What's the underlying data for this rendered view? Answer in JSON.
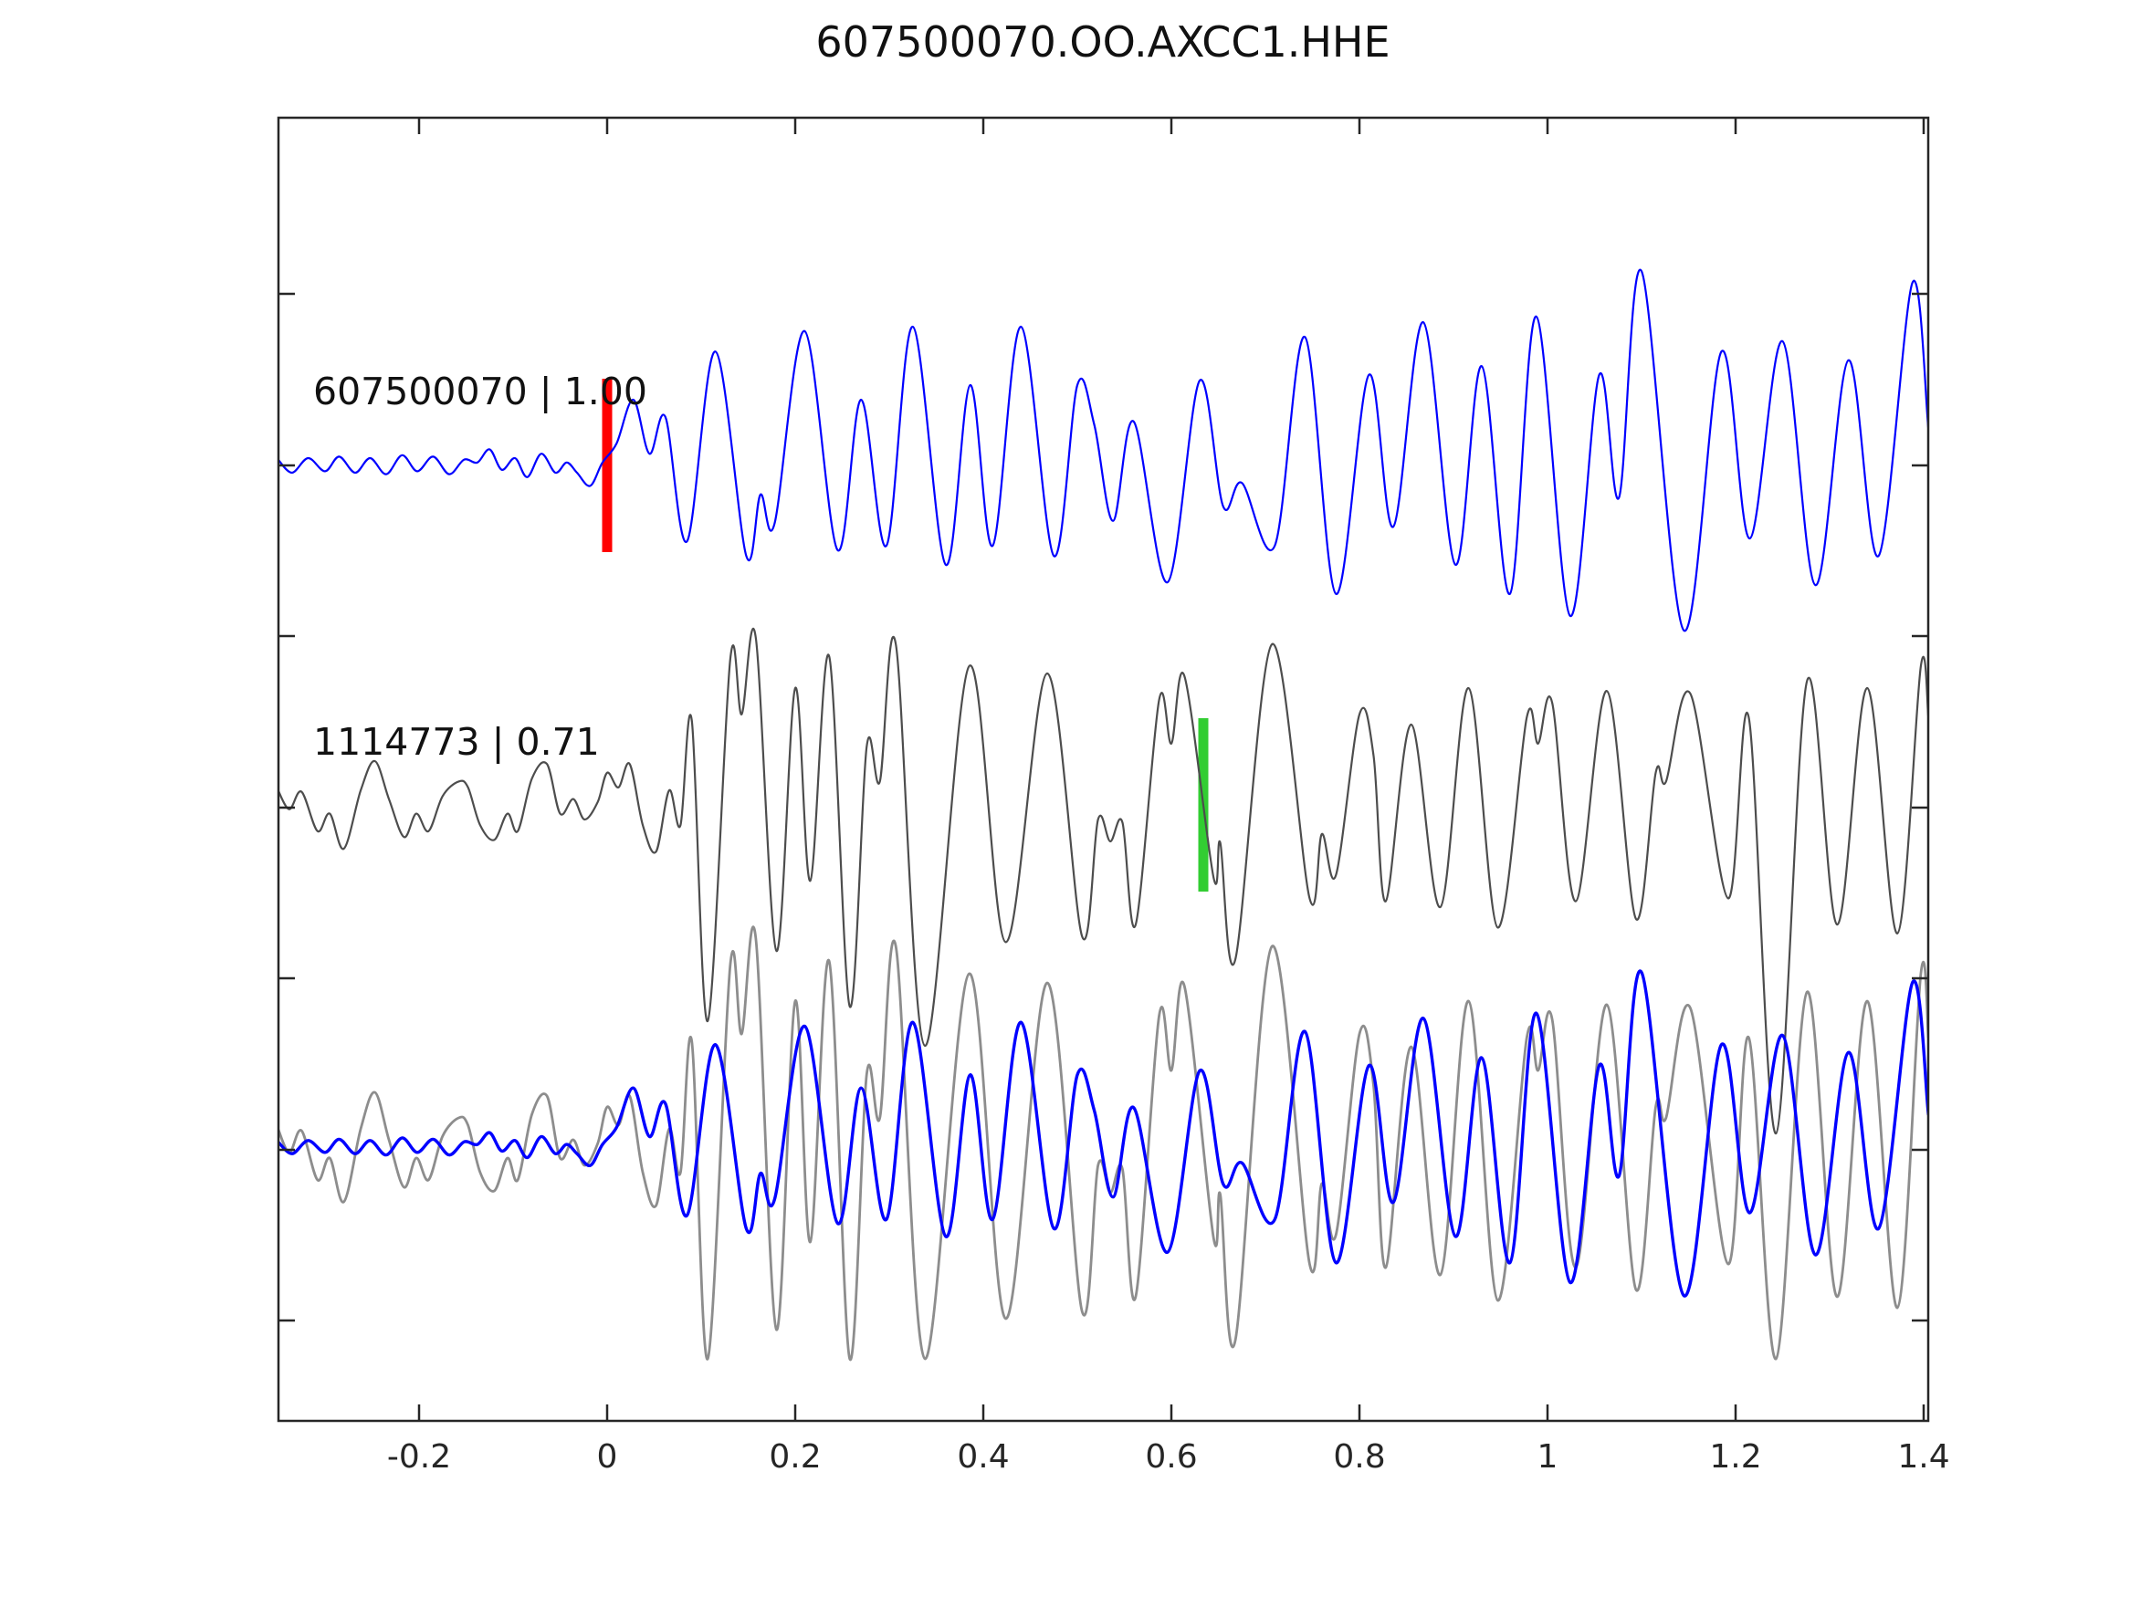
{
  "figure": {
    "title": "607500070.OO.AXCC1.HHE"
  },
  "axes": {
    "x_range": [
      -0.35,
      1.405
    ],
    "frame_color": "#262626",
    "x_ticks": [
      {
        "value": -0.2,
        "label": "-0.2"
      },
      {
        "value": 0.0,
        "label": "0"
      },
      {
        "value": 0.2,
        "label": "0.2"
      },
      {
        "value": 0.4,
        "label": "0.4"
      },
      {
        "value": 0.6,
        "label": "0.6"
      },
      {
        "value": 0.8,
        "label": "0.8"
      },
      {
        "value": 1.0,
        "label": "1"
      },
      {
        "value": 1.2,
        "label": "1.2"
      },
      {
        "value": 1.4,
        "label": "1.4"
      }
    ]
  },
  "chart_data": {
    "type": "line",
    "title": "607500070.OO.AXCC1.HHE",
    "xlabel": "",
    "ylabel": "",
    "x_units": "seconds relative to pick",
    "legend_position": "none",
    "grid": false,
    "traces": [
      {
        "id": "template",
        "label": "607500070 | 1.00",
        "event_id": "607500070",
        "correlation": 1.0,
        "color": "#0000ff",
        "line_width": 2.2,
        "row": 0,
        "pick": {
          "time": 0.0,
          "color": "#ff0000"
        },
        "points": [
          [
            -0.35,
            0.04
          ],
          [
            -0.335,
            -0.05
          ],
          [
            -0.318,
            0.05
          ],
          [
            -0.3,
            -0.04
          ],
          [
            -0.285,
            0.06
          ],
          [
            -0.268,
            -0.05
          ],
          [
            -0.252,
            0.05
          ],
          [
            -0.235,
            -0.06
          ],
          [
            -0.218,
            0.07
          ],
          [
            -0.202,
            -0.04
          ],
          [
            -0.185,
            0.06
          ],
          [
            -0.168,
            -0.06
          ],
          [
            -0.152,
            0.04
          ],
          [
            -0.138,
            0.02
          ],
          [
            -0.125,
            0.11
          ],
          [
            -0.112,
            -0.03
          ],
          [
            -0.098,
            0.05
          ],
          [
            -0.085,
            -0.08
          ],
          [
            -0.07,
            0.08
          ],
          [
            -0.055,
            -0.05
          ],
          [
            -0.043,
            0.02
          ],
          [
            -0.032,
            -0.05
          ],
          [
            -0.018,
            -0.14
          ],
          [
            -0.005,
            0.02
          ],
          [
            0.01,
            0.15
          ],
          [
            0.028,
            0.45
          ],
          [
            0.045,
            0.08
          ],
          [
            0.062,
            0.33
          ],
          [
            0.085,
            -0.52
          ],
          [
            0.115,
            0.78
          ],
          [
            0.148,
            -0.62
          ],
          [
            0.163,
            -0.2
          ],
          [
            0.178,
            -0.4
          ],
          [
            0.21,
            0.92
          ],
          [
            0.245,
            -0.58
          ],
          [
            0.27,
            0.45
          ],
          [
            0.297,
            -0.55
          ],
          [
            0.325,
            0.95
          ],
          [
            0.36,
            -0.68
          ],
          [
            0.386,
            0.55
          ],
          [
            0.41,
            -0.55
          ],
          [
            0.44,
            0.95
          ],
          [
            0.475,
            -0.62
          ],
          [
            0.5,
            0.55
          ],
          [
            0.518,
            0.28
          ],
          [
            0.538,
            -0.38
          ],
          [
            0.56,
            0.3
          ],
          [
            0.596,
            -0.8
          ],
          [
            0.63,
            0.58
          ],
          [
            0.655,
            -0.28
          ],
          [
            0.675,
            -0.12
          ],
          [
            0.71,
            -0.55
          ],
          [
            0.742,
            0.88
          ],
          [
            0.775,
            -0.88
          ],
          [
            0.81,
            0.62
          ],
          [
            0.836,
            -0.42
          ],
          [
            0.868,
            0.98
          ],
          [
            0.902,
            -0.68
          ],
          [
            0.93,
            0.68
          ],
          [
            0.96,
            -0.88
          ],
          [
            0.988,
            1.02
          ],
          [
            1.024,
            -1.03
          ],
          [
            1.055,
            0.62
          ],
          [
            1.076,
            -0.22
          ],
          [
            1.1,
            1.33
          ],
          [
            1.145,
            -1.13
          ],
          [
            1.185,
            0.78
          ],
          [
            1.215,
            -0.5
          ],
          [
            1.25,
            0.85
          ],
          [
            1.285,
            -0.82
          ],
          [
            1.32,
            0.72
          ],
          [
            1.352,
            -0.62
          ],
          [
            1.388,
            1.25
          ],
          [
            1.405,
            0.25
          ]
        ]
      },
      {
        "id": "detection",
        "label": "1114773 | 0.71",
        "event_id": "1114773",
        "correlation": 0.71,
        "color": "#4d4d4d",
        "line_width": 2.2,
        "row": 1,
        "pick": {
          "time": 0.634,
          "color": "#32cd32"
        },
        "points": [
          [
            -0.35,
            0.1
          ],
          [
            -0.338,
            -0.03
          ],
          [
            -0.325,
            0.09
          ],
          [
            -0.308,
            -0.18
          ],
          [
            -0.295,
            -0.06
          ],
          [
            -0.28,
            -0.3
          ],
          [
            -0.262,
            0.1
          ],
          [
            -0.247,
            0.3
          ],
          [
            -0.232,
            0.04
          ],
          [
            -0.216,
            -0.22
          ],
          [
            -0.203,
            -0.06
          ],
          [
            -0.19,
            -0.18
          ],
          [
            -0.175,
            0.06
          ],
          [
            -0.158,
            0.16
          ],
          [
            -0.148,
            0.12
          ],
          [
            -0.135,
            -0.14
          ],
          [
            -0.12,
            -0.24
          ],
          [
            -0.106,
            -0.06
          ],
          [
            -0.095,
            -0.18
          ],
          [
            -0.08,
            0.18
          ],
          [
            -0.064,
            0.28
          ],
          [
            -0.05,
            -0.06
          ],
          [
            -0.036,
            0.04
          ],
          [
            -0.024,
            -0.1
          ],
          [
            -0.01,
            0.02
          ],
          [
            0.0,
            0.22
          ],
          [
            0.012,
            0.12
          ],
          [
            0.024,
            0.28
          ],
          [
            0.038,
            -0.14
          ],
          [
            0.052,
            -0.32
          ],
          [
            0.066,
            0.1
          ],
          [
            0.078,
            -0.14
          ],
          [
            0.09,
            0.58
          ],
          [
            0.107,
            -1.48
          ],
          [
            0.131,
            1.0
          ],
          [
            0.143,
            0.62
          ],
          [
            0.158,
            1.15
          ],
          [
            0.18,
            -1.0
          ],
          [
            0.2,
            0.8
          ],
          [
            0.216,
            -0.52
          ],
          [
            0.236,
            1.02
          ],
          [
            0.258,
            -1.38
          ],
          [
            0.276,
            0.4
          ],
          [
            0.29,
            0.16
          ],
          [
            0.307,
            1.1
          ],
          [
            0.338,
            -1.65
          ],
          [
            0.385,
            0.95
          ],
          [
            0.424,
            -0.94
          ],
          [
            0.468,
            0.9
          ],
          [
            0.505,
            -0.9
          ],
          [
            0.522,
            -0.1
          ],
          [
            0.535,
            -0.25
          ],
          [
            0.548,
            -0.12
          ],
          [
            0.562,
            -0.82
          ],
          [
            0.587,
            0.72
          ],
          [
            0.6,
            0.42
          ],
          [
            0.614,
            0.88
          ],
          [
            0.645,
            -0.5
          ],
          [
            0.652,
            -0.26
          ],
          [
            0.668,
            -1.06
          ],
          [
            0.707,
            1.1
          ],
          [
            0.747,
            -0.64
          ],
          [
            0.76,
            -0.2
          ],
          [
            0.775,
            -0.48
          ],
          [
            0.8,
            0.62
          ],
          [
            0.815,
            0.34
          ],
          [
            0.828,
            -0.66
          ],
          [
            0.855,
            0.55
          ],
          [
            0.886,
            -0.7
          ],
          [
            0.916,
            0.8
          ],
          [
            0.947,
            -0.84
          ],
          [
            0.978,
            0.6
          ],
          [
            0.99,
            0.42
          ],
          [
            1.005,
            0.7
          ],
          [
            1.03,
            -0.66
          ],
          [
            1.063,
            0.78
          ],
          [
            1.094,
            -0.78
          ],
          [
            1.115,
            0.22
          ],
          [
            1.126,
            0.16
          ],
          [
            1.152,
            0.76
          ],
          [
            1.192,
            -0.64
          ],
          [
            1.214,
            0.6
          ],
          [
            1.243,
            -2.25
          ],
          [
            1.276,
            0.85
          ],
          [
            1.308,
            -0.82
          ],
          [
            1.34,
            0.8
          ],
          [
            1.372,
            -0.88
          ],
          [
            1.397,
            0.95
          ],
          [
            1.405,
            0.6
          ]
        ]
      }
    ],
    "overlay": {
      "row": 2,
      "description": "aligned superposition of detection (gray) and template (blue)",
      "components": [
        {
          "ref": "detection",
          "color": "#8d8d8d",
          "line_width": 2.8,
          "scale": 1.25,
          "clip": 1.45
        },
        {
          "ref": "template",
          "color": "#0000ff",
          "line_width": 3.4,
          "scale": 0.9,
          "clip": null
        }
      ]
    }
  }
}
